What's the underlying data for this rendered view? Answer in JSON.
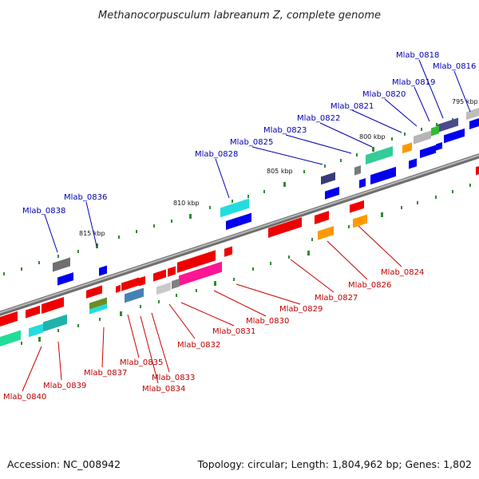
{
  "title": "Methanocorpusculum labreanum Z, complete genome",
  "footer": {
    "accession": "Accession: NC_008942",
    "info": "Topology: circular; Length: 1,804,962 bp; Genes: 1,802"
  },
  "kbp_labels": [
    "795 kbp",
    "800 kbp",
    "805 kbp",
    "810 kbp",
    "815 kbp"
  ],
  "top_labels": [
    "Mlab_0818",
    "Mlab_0816",
    "Mlab_0819",
    "Mlab_0820",
    "Mlab_0821",
    "Mlab_0822",
    "Mlab_0823",
    "Mlab_0825",
    "Mlab_0828",
    "Mlab_0836",
    "Mlab_0838"
  ],
  "bottom_labels": [
    "Mlab_0824",
    "Mlab_0826",
    "Mlab_0827",
    "Mlab_0829",
    "Mlab_0830",
    "Mlab_0831",
    "Mlab_0832",
    "Mlab_0833",
    "Mlab_0834",
    "Mlab_0835",
    "Mlab_0837",
    "Mlab_0839",
    "Mlab_0840"
  ],
  "colors": {
    "forward_strand": "#0000ee",
    "reverse_strand": "#ee0000",
    "top_label": "#0000b0",
    "bottom_label": "#c00000",
    "backbone": "#8a8a8a",
    "tick": "#2e8b2e"
  }
}
